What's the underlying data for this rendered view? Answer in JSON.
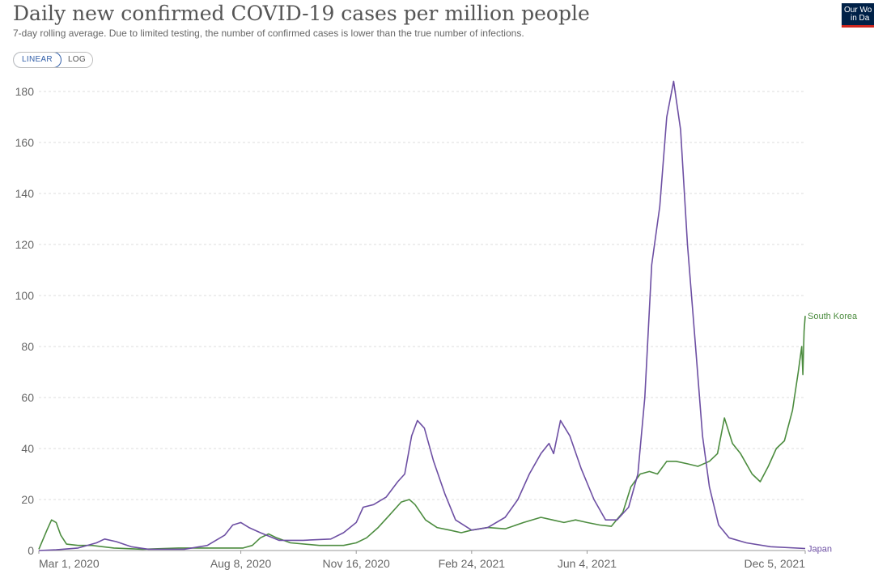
{
  "header": {
    "title": "Daily new confirmed COVID-19 cases per million people",
    "subtitle": "7-day rolling average. Due to limited testing, the number of confirmed cases is lower than the true number of infections."
  },
  "controls": {
    "linear_label": "LINEAR",
    "log_label": "LOG",
    "selected": "LINEAR"
  },
  "logo": {
    "line1": "Our Wo",
    "line2": "in Da"
  },
  "colors": {
    "south_korea": "#4c8c3f",
    "japan": "#6d4fa3",
    "grid": "#dddddd",
    "axis_text": "#666666"
  },
  "chart_data": {
    "type": "line",
    "title": "Daily new confirmed COVID-19 cases per million people",
    "subtitle": "7-day rolling average. Due to limited testing, the number of confirmed cases is lower than the true number of infections.",
    "x_ticks": [
      "Mar 1, 2020",
      "Aug 8, 2020",
      "Nov 16, 2020",
      "Feb 24, 2021",
      "Jun 4, 2021",
      "Dec 5, 2021"
    ],
    "y_ticks": [
      0,
      20,
      40,
      60,
      80,
      100,
      120,
      140,
      160,
      180
    ],
    "ylim": [
      0,
      180
    ],
    "grid": "horizontal dashed",
    "scale": "linear",
    "series": [
      {
        "name": "South Korea",
        "color": "#4c8c3f",
        "points": [
          [
            "2020-02-15",
            0.5
          ],
          [
            "2020-02-22",
            8
          ],
          [
            "2020-02-26",
            12
          ],
          [
            "2020-03-01",
            11
          ],
          [
            "2020-03-05",
            6
          ],
          [
            "2020-03-10",
            2.5
          ],
          [
            "2020-03-20",
            2
          ],
          [
            "2020-04-01",
            2
          ],
          [
            "2020-04-20",
            1
          ],
          [
            "2020-05-15",
            0.5
          ],
          [
            "2020-06-15",
            1
          ],
          [
            "2020-07-20",
            1
          ],
          [
            "2020-08-10",
            1
          ],
          [
            "2020-08-18",
            2
          ],
          [
            "2020-08-25",
            5
          ],
          [
            "2020-09-01",
            6.5
          ],
          [
            "2020-09-08",
            5
          ],
          [
            "2020-09-20",
            3
          ],
          [
            "2020-10-15",
            2
          ],
          [
            "2020-11-05",
            2
          ],
          [
            "2020-11-16",
            3
          ],
          [
            "2020-11-25",
            5
          ],
          [
            "2020-12-05",
            9
          ],
          [
            "2020-12-15",
            14
          ],
          [
            "2020-12-25",
            19
          ],
          [
            "2021-01-01",
            20
          ],
          [
            "2021-01-06",
            18
          ],
          [
            "2021-01-15",
            12
          ],
          [
            "2021-01-25",
            9
          ],
          [
            "2021-02-05",
            8
          ],
          [
            "2021-02-15",
            7
          ],
          [
            "2021-02-24",
            8
          ],
          [
            "2021-03-10",
            9
          ],
          [
            "2021-03-25",
            8.5
          ],
          [
            "2021-04-10",
            11
          ],
          [
            "2021-04-25",
            13
          ],
          [
            "2021-05-05",
            12
          ],
          [
            "2021-05-15",
            11
          ],
          [
            "2021-05-25",
            12
          ],
          [
            "2021-06-04",
            11
          ],
          [
            "2021-06-15",
            10
          ],
          [
            "2021-06-25",
            9.5
          ],
          [
            "2021-07-05",
            15
          ],
          [
            "2021-07-12",
            25
          ],
          [
            "2021-07-20",
            30
          ],
          [
            "2021-07-28",
            31
          ],
          [
            "2021-08-04",
            30
          ],
          [
            "2021-08-12",
            35
          ],
          [
            "2021-08-20",
            35
          ],
          [
            "2021-08-30",
            34
          ],
          [
            "2021-09-08",
            33
          ],
          [
            "2021-09-18",
            35
          ],
          [
            "2021-09-25",
            38
          ],
          [
            "2021-10-01",
            52
          ],
          [
            "2021-10-08",
            42
          ],
          [
            "2021-10-15",
            38
          ],
          [
            "2021-10-25",
            30
          ],
          [
            "2021-11-01",
            27
          ],
          [
            "2021-11-08",
            33
          ],
          [
            "2021-11-15",
            40
          ],
          [
            "2021-11-22",
            43
          ],
          [
            "2021-11-29",
            55
          ],
          [
            "2021-12-04",
            70
          ],
          [
            "2021-12-07",
            80
          ],
          [
            "2021-12-08",
            69
          ],
          [
            "2021-12-09",
            86
          ],
          [
            "2021-12-10",
            92
          ]
        ]
      },
      {
        "name": "Japan",
        "color": "#6d4fa3",
        "points": [
          [
            "2020-02-15",
            0
          ],
          [
            "2020-03-01",
            0.3
          ],
          [
            "2020-03-20",
            1
          ],
          [
            "2020-04-05",
            3
          ],
          [
            "2020-04-12",
            4.5
          ],
          [
            "2020-04-22",
            3.5
          ],
          [
            "2020-05-05",
            1.5
          ],
          [
            "2020-05-20",
            0.5
          ],
          [
            "2020-06-20",
            0.5
          ],
          [
            "2020-07-10",
            2
          ],
          [
            "2020-07-25",
            6
          ],
          [
            "2020-08-01",
            10
          ],
          [
            "2020-08-08",
            11
          ],
          [
            "2020-08-15",
            9
          ],
          [
            "2020-08-25",
            7
          ],
          [
            "2020-09-10",
            4
          ],
          [
            "2020-10-01",
            4
          ],
          [
            "2020-10-25",
            4.5
          ],
          [
            "2020-11-05",
            7
          ],
          [
            "2020-11-16",
            11
          ],
          [
            "2020-11-22",
            17
          ],
          [
            "2020-12-01",
            18
          ],
          [
            "2020-12-12",
            21
          ],
          [
            "2020-12-22",
            27
          ],
          [
            "2020-12-28",
            30
          ],
          [
            "2021-01-03",
            45
          ],
          [
            "2021-01-08",
            51
          ],
          [
            "2021-01-14",
            48
          ],
          [
            "2021-01-22",
            35
          ],
          [
            "2021-02-01",
            22
          ],
          [
            "2021-02-10",
            12
          ],
          [
            "2021-02-24",
            8
          ],
          [
            "2021-03-10",
            9
          ],
          [
            "2021-03-25",
            13
          ],
          [
            "2021-04-05",
            20
          ],
          [
            "2021-04-15",
            30
          ],
          [
            "2021-04-25",
            38
          ],
          [
            "2021-05-02",
            42
          ],
          [
            "2021-05-06",
            38
          ],
          [
            "2021-05-12",
            51
          ],
          [
            "2021-05-20",
            45
          ],
          [
            "2021-05-30",
            32
          ],
          [
            "2021-06-10",
            20
          ],
          [
            "2021-06-20",
            12
          ],
          [
            "2021-06-30",
            12
          ],
          [
            "2021-07-10",
            17
          ],
          [
            "2021-07-18",
            30
          ],
          [
            "2021-07-24",
            60
          ],
          [
            "2021-07-30",
            112
          ],
          [
            "2021-08-06",
            135
          ],
          [
            "2021-08-12",
            170
          ],
          [
            "2021-08-18",
            184
          ],
          [
            "2021-08-24",
            165
          ],
          [
            "2021-08-30",
            120
          ],
          [
            "2021-09-06",
            80
          ],
          [
            "2021-09-12",
            45
          ],
          [
            "2021-09-18",
            25
          ],
          [
            "2021-09-26",
            10
          ],
          [
            "2021-10-05",
            5
          ],
          [
            "2021-10-20",
            3
          ],
          [
            "2021-11-10",
            1.5
          ],
          [
            "2021-12-10",
            0.8
          ]
        ]
      }
    ]
  }
}
